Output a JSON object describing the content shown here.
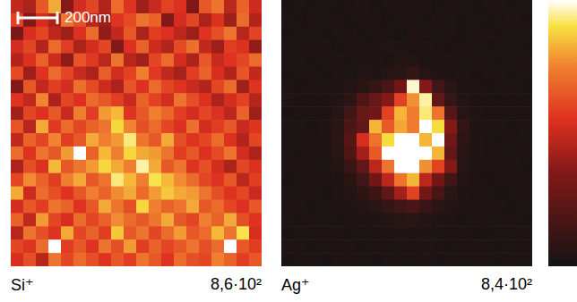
{
  "chart_data": [
    {
      "type": "heatmap",
      "title": "Si⁺",
      "scale_bar": "200nm",
      "tick_labels": false,
      "xlim": [
        0,
        20
      ],
      "ylim": [
        0,
        20
      ],
      "color_range": [
        0,
        860
      ],
      "color_max_label": "8,6·10²",
      "cells": [
        [
          420,
          380,
          560,
          700,
          310,
          450,
          520,
          390,
          600,
          480,
          350,
          430,
          510,
          470,
          290,
          560,
          620,
          410,
          580,
          440
        ],
        [
          510,
          300,
          450,
          380,
          620,
          540,
          400,
          350,
          480,
          530,
          620,
          580,
          300,
          450,
          520,
          380,
          470,
          350,
          600,
          390
        ],
        [
          280,
          460,
          520,
          410,
          350,
          470,
          600,
          330,
          420,
          560,
          380,
          500,
          470,
          410,
          350,
          480,
          540,
          620,
          400,
          510
        ],
        [
          450,
          520,
          390,
          600,
          500,
          380,
          450,
          520,
          300,
          470,
          580,
          440,
          390,
          530,
          610,
          420,
          350,
          500,
          470,
          330
        ],
        [
          390,
          470,
          580,
          440,
          320,
          550,
          490,
          410,
          620,
          400,
          360,
          520,
          600,
          450,
          380,
          560,
          430,
          480,
          520,
          600
        ],
        [
          530,
          350,
          480,
          600,
          520,
          430,
          380,
          570,
          450,
          510,
          640,
          490,
          420,
          370,
          500,
          580,
          460,
          390,
          550,
          420
        ],
        [
          300,
          560,
          420,
          500,
          450,
          610,
          530,
          440,
          380,
          550,
          470,
          600,
          520,
          480,
          430,
          390,
          520,
          600,
          360,
          480
        ],
        [
          480,
          420,
          650,
          380,
          520,
          470,
          600,
          560,
          500,
          430,
          580,
          510,
          450,
          620,
          540,
          470,
          380,
          450,
          510,
          400
        ],
        [
          360,
          520,
          470,
          560,
          430,
          640,
          500,
          680,
          720,
          480,
          560,
          640,
          590,
          500,
          450,
          520,
          470,
          410,
          580,
          350
        ],
        [
          550,
          400,
          700,
          490,
          600,
          520,
          580,
          620,
          760,
          650,
          540,
          600,
          520,
          470,
          610,
          450,
          500,
          560,
          430,
          480
        ],
        [
          420,
          580,
          520,
          650,
          500,
          560,
          700,
          640,
          680,
          800,
          620,
          560,
          700,
          540,
          480,
          520,
          600,
          470,
          390,
          520
        ],
        [
          600,
          480,
          620,
          560,
          680,
          860,
          580,
          720,
          640,
          760,
          700,
          680,
          620,
          500,
          560,
          470,
          530,
          620,
          450,
          380
        ],
        [
          380,
          540,
          470,
          720,
          560,
          620,
          680,
          760,
          700,
          640,
          820,
          700,
          560,
          620,
          480,
          540,
          450,
          380,
          520,
          470
        ],
        [
          520,
          660,
          580,
          500,
          640,
          700,
          560,
          620,
          800,
          720,
          640,
          780,
          720,
          660,
          600,
          520,
          480,
          560,
          410,
          500
        ],
        [
          700,
          440,
          600,
          540,
          480,
          560,
          640,
          580,
          660,
          700,
          600,
          680,
          740,
          700,
          680,
          620,
          540,
          480,
          520,
          430
        ],
        [
          450,
          560,
          500,
          620,
          580,
          480,
          560,
          700,
          620,
          540,
          760,
          640,
          580,
          620,
          700,
          560,
          600,
          520,
          470,
          560
        ],
        [
          580,
          420,
          680,
          520,
          460,
          600,
          520,
          580,
          660,
          600,
          560,
          620,
          700,
          560,
          520,
          640,
          580,
          700,
          540,
          480
        ],
        [
          400,
          620,
          540,
          480,
          700,
          520,
          580,
          500,
          740,
          560,
          620,
          520,
          600,
          680,
          560,
          600,
          720,
          620,
          780,
          460
        ],
        [
          520,
          480,
          600,
          860,
          500,
          560,
          480,
          620,
          540,
          680,
          500,
          580,
          520,
          560,
          620,
          540,
          600,
          860,
          560,
          500
        ],
        [
          460,
          540,
          400,
          620,
          520,
          600,
          540,
          480,
          560,
          500,
          620,
          560,
          480,
          600,
          540,
          520,
          640,
          580,
          500,
          560
        ]
      ]
    },
    {
      "type": "heatmap",
      "title": "Ag⁺",
      "tick_labels": false,
      "xlim": [
        0,
        20
      ],
      "ylim": [
        0,
        20
      ],
      "color_range": [
        0,
        840
      ],
      "color_max_label": "8,4·10²",
      "cells": [
        [
          20,
          25,
          18,
          30,
          22,
          28,
          35,
          20,
          26,
          30,
          24,
          32,
          20,
          28,
          25,
          22,
          30,
          26,
          20,
          24
        ],
        [
          28,
          20,
          32,
          24,
          30,
          20,
          26,
          34,
          22,
          28,
          30,
          20,
          36,
          24,
          22,
          30,
          20,
          28,
          32,
          22
        ],
        [
          22,
          30,
          24,
          20,
          28,
          34,
          22,
          30,
          26,
          20,
          32,
          28,
          24,
          30,
          20,
          26,
          34,
          22,
          24,
          30
        ],
        [
          30,
          24,
          28,
          34,
          20,
          26,
          30,
          24,
          40,
          32,
          28,
          36,
          30,
          22,
          28,
          24,
          20,
          30,
          26,
          20
        ],
        [
          24,
          28,
          20,
          26,
          32,
          22,
          28,
          36,
          30,
          44,
          38,
          30,
          26,
          34,
          24,
          30,
          28,
          20,
          24,
          28
        ],
        [
          20,
          32,
          26,
          22,
          28,
          30,
          40,
          34,
          48,
          60,
          90,
          50,
          36,
          28,
          32,
          22,
          26,
          30,
          20,
          26
        ],
        [
          26,
          22,
          30,
          28,
          34,
          40,
          60,
          90,
          140,
          250,
          820,
          300,
          120,
          60,
          30,
          28,
          22,
          26,
          30,
          22
        ],
        [
          32,
          26,
          24,
          30,
          40,
          70,
          160,
          220,
          300,
          500,
          650,
          800,
          200,
          90,
          40,
          30,
          26,
          22,
          28,
          30
        ],
        [
          22,
          28,
          30,
          26,
          50,
          120,
          220,
          250,
          500,
          700,
          620,
          780,
          600,
          180,
          50,
          34,
          28,
          30,
          24,
          26
        ],
        [
          28,
          24,
          22,
          36,
          60,
          150,
          200,
          700,
          550,
          680,
          620,
          840,
          750,
          300,
          80,
          30,
          24,
          28,
          22,
          30
        ],
        [
          24,
          30,
          28,
          32,
          70,
          180,
          450,
          600,
          750,
          840,
          840,
          700,
          840,
          250,
          70,
          36,
          30,
          22,
          26,
          24
        ],
        [
          30,
          22,
          26,
          28,
          60,
          160,
          350,
          550,
          840,
          840,
          840,
          840,
          700,
          200,
          60,
          32,
          26,
          30,
          24,
          28
        ],
        [
          26,
          28,
          30,
          24,
          44,
          100,
          200,
          400,
          600,
          840,
          840,
          650,
          500,
          300,
          50,
          28,
          30,
          24,
          28,
          22
        ],
        [
          22,
          30,
          24,
          28,
          36,
          60,
          120,
          250,
          400,
          600,
          700,
          400,
          250,
          120,
          40,
          30,
          22,
          28,
          30,
          26
        ],
        [
          30,
          24,
          28,
          22,
          30,
          40,
          70,
          110,
          200,
          350,
          500,
          250,
          140,
          60,
          34,
          26,
          28,
          22,
          24,
          30
        ],
        [
          24,
          28,
          20,
          30,
          26,
          32,
          40,
          60,
          90,
          120,
          150,
          100,
          60,
          40,
          28,
          30,
          24,
          26,
          20,
          28
        ],
        [
          28,
          22,
          30,
          24,
          20,
          28,
          30,
          36,
          44,
          50,
          56,
          40,
          34,
          28,
          22,
          26,
          30,
          24,
          28,
          22
        ],
        [
          20,
          26,
          24,
          30,
          28,
          22,
          26,
          30,
          28,
          34,
          30,
          28,
          24,
          30,
          26,
          22,
          20,
          28,
          24,
          30
        ],
        [
          26,
          30,
          22,
          24,
          30,
          28,
          20,
          26,
          30,
          24,
          28,
          32,
          26,
          22,
          30,
          28,
          24,
          20,
          30,
          26
        ],
        [
          22,
          24,
          28,
          20,
          26,
          30,
          24,
          22,
          28,
          26,
          24,
          30,
          22,
          28,
          24,
          30,
          26,
          22,
          28,
          24
        ]
      ]
    }
  ]
}
